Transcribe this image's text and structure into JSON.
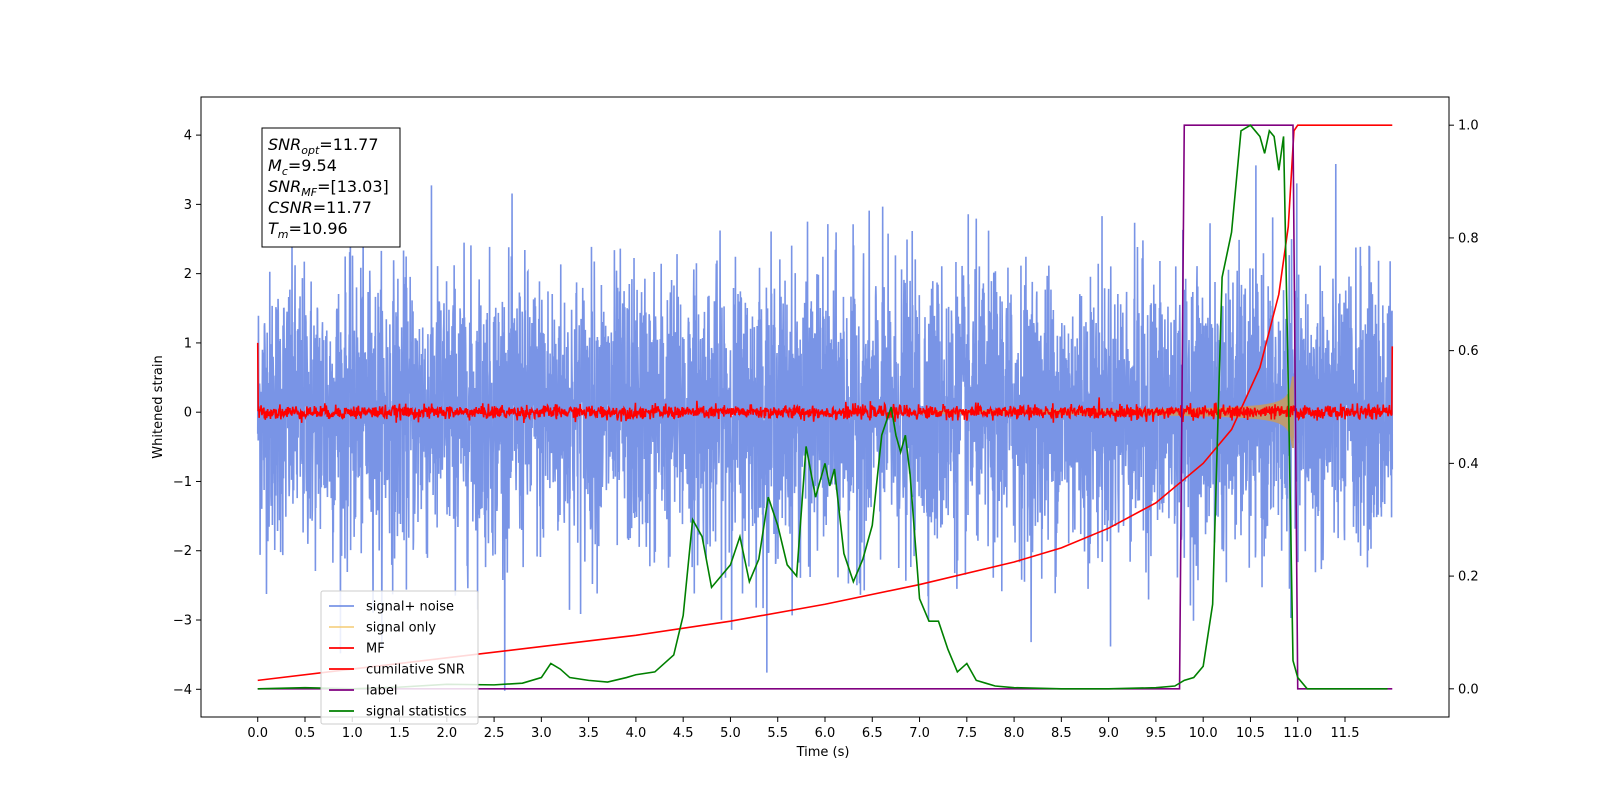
{
  "chart_data": {
    "type": "line",
    "xlabel": "Time (s)",
    "ylabel": "Whitened strain",
    "xlim": [
      -0.6,
      12.6
    ],
    "ylim": [
      -4.4,
      4.55
    ],
    "y2lim": [
      -0.05,
      1.05
    ],
    "x_ticks": [
      0.0,
      0.5,
      1.0,
      1.5,
      2.0,
      2.5,
      3.0,
      3.5,
      4.0,
      4.5,
      5.0,
      5.5,
      6.0,
      6.5,
      7.0,
      7.5,
      8.0,
      8.5,
      9.0,
      9.5,
      10.0,
      10.5,
      11.0,
      11.5
    ],
    "x_tick_labels": [
      "0.0",
      "0.5",
      "1.0",
      "1.5",
      "2.0",
      "2.5",
      "3.0",
      "3.5",
      "4.0",
      "4.5",
      "5.0",
      "5.5",
      "6.0",
      "6.5",
      "7.0",
      "7.5",
      "8.0",
      "8.5",
      "9.0",
      "9.5",
      "10.0",
      "10.5",
      "11.0",
      "11.5"
    ],
    "y_ticks": [
      -4,
      -3,
      -2,
      -1,
      0,
      1,
      2,
      3,
      4
    ],
    "y_tick_labels": [
      "−4",
      "−3",
      "−2",
      "−1",
      "0",
      "1",
      "2",
      "3",
      "4"
    ],
    "y2_ticks": [
      0.0,
      0.2,
      0.4,
      0.6,
      0.8,
      1.0
    ],
    "y2_tick_labels": [
      "0.0",
      "0.2",
      "0.4",
      "0.6",
      "0.8",
      "1.0"
    ],
    "grid": false,
    "legend_position": "bottom-left",
    "series": [
      {
        "name": "signal+ noise",
        "color": "#6a88e3",
        "axis": "left",
        "style": "noise",
        "x_range": [
          0,
          12
        ],
        "amplitude_std": 1.0
      },
      {
        "name": "signal only",
        "color": "#f4c86a",
        "axis": "left",
        "style": "chirp",
        "x_range": [
          0,
          10.96
        ]
      },
      {
        "name": "MF",
        "color": "#ff0000",
        "axis": "left",
        "style": "noise",
        "x_range": [
          0,
          12
        ],
        "amplitude_std": 0.05,
        "x": [
          0,
          0.01,
          11.99,
          12.0
        ],
        "y": [
          1.0,
          0.0,
          0.0,
          0.95
        ]
      },
      {
        "name": "cumilative SNR",
        "color": "#ff0000",
        "axis": "right",
        "x": [
          0.0,
          1.0,
          2.0,
          3.0,
          4.0,
          5.0,
          6.0,
          7.0,
          8.0,
          8.5,
          9.0,
          9.5,
          10.0,
          10.3,
          10.6,
          10.8,
          10.9,
          10.96,
          11.0,
          12.0
        ],
        "y": [
          0.015,
          0.035,
          0.055,
          0.075,
          0.095,
          0.12,
          0.15,
          0.185,
          0.225,
          0.25,
          0.285,
          0.33,
          0.4,
          0.46,
          0.57,
          0.7,
          0.82,
          0.99,
          1.0,
          1.0
        ]
      },
      {
        "name": "label",
        "color": "#800080",
        "axis": "right",
        "x": [
          0.0,
          9.75,
          9.8,
          10.95,
          11.0,
          12.0
        ],
        "y": [
          0.0,
          0.0,
          1.0,
          1.0,
          0.0,
          0.0
        ]
      },
      {
        "name": "signal statistics",
        "color": "#008000",
        "axis": "right",
        "x": [
          0.0,
          0.5,
          1.0,
          1.5,
          2.0,
          2.5,
          2.8,
          3.0,
          3.1,
          3.2,
          3.3,
          3.5,
          3.7,
          3.9,
          4.0,
          4.2,
          4.4,
          4.5,
          4.6,
          4.7,
          4.8,
          4.9,
          5.0,
          5.1,
          5.2,
          5.3,
          5.4,
          5.5,
          5.6,
          5.7,
          5.8,
          5.9,
          6.0,
          6.05,
          6.1,
          6.2,
          6.3,
          6.4,
          6.5,
          6.6,
          6.7,
          6.75,
          6.8,
          6.85,
          6.9,
          7.0,
          7.1,
          7.2,
          7.3,
          7.4,
          7.5,
          7.6,
          7.7,
          7.8,
          8.0,
          8.5,
          9.0,
          9.5,
          9.7,
          9.8,
          9.9,
          10.0,
          10.1,
          10.2,
          10.3,
          10.4,
          10.5,
          10.55,
          10.6,
          10.65,
          10.7,
          10.75,
          10.8,
          10.85,
          10.9,
          10.95,
          11.0,
          11.1,
          11.5,
          11.95
        ],
        "y": [
          0.0,
          0.002,
          0.0,
          0.003,
          0.008,
          0.007,
          0.01,
          0.02,
          0.045,
          0.035,
          0.02,
          0.015,
          0.012,
          0.02,
          0.025,
          0.03,
          0.06,
          0.13,
          0.3,
          0.27,
          0.18,
          0.2,
          0.22,
          0.27,
          0.19,
          0.23,
          0.34,
          0.29,
          0.22,
          0.2,
          0.43,
          0.34,
          0.4,
          0.36,
          0.39,
          0.24,
          0.19,
          0.23,
          0.29,
          0.45,
          0.5,
          0.45,
          0.42,
          0.45,
          0.38,
          0.16,
          0.12,
          0.12,
          0.07,
          0.03,
          0.045,
          0.015,
          0.01,
          0.005,
          0.002,
          0.0,
          0.0,
          0.002,
          0.005,
          0.015,
          0.02,
          0.04,
          0.15,
          0.73,
          0.81,
          0.99,
          1.0,
          0.99,
          0.98,
          0.95,
          0.99,
          0.98,
          0.92,
          0.98,
          0.54,
          0.05,
          0.02,
          0.0,
          0.0,
          0.0
        ]
      }
    ],
    "annotations": {
      "snr_opt": "=11.77",
      "mc": "=9.54",
      "snr_mf": "=[13.03]",
      "csnr": "=11.77",
      "tm": "=10.96"
    }
  }
}
